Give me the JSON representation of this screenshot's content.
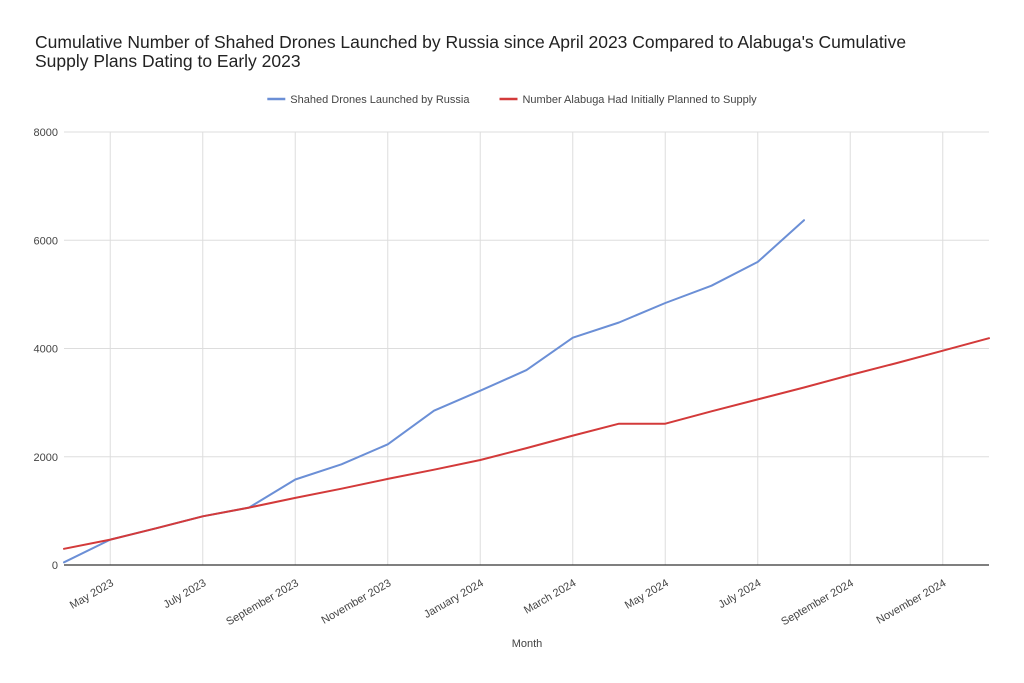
{
  "chart_data": {
    "type": "line",
    "title_lines": [
      "Cumulative Number of Shahed Drones Launched by Russia since April 2023 Compared to Alabuga's Cumulative",
      "Supply Plans Dating to Early 2023"
    ],
    "xlabel": "Month",
    "ylabel": "",
    "ylim": [
      0,
      8000
    ],
    "y_ticks": [
      0,
      2000,
      4000,
      6000,
      8000
    ],
    "x_range": [
      "2023-04",
      "2024-12"
    ],
    "x_ticks": [
      {
        "x": "2023-05",
        "label": "May 2023"
      },
      {
        "x": "2023-07",
        "label": "July 2023"
      },
      {
        "x": "2023-09",
        "label": "September 2023"
      },
      {
        "x": "2023-11",
        "label": "November 2023"
      },
      {
        "x": "2024-01",
        "label": "January 2024"
      },
      {
        "x": "2024-03",
        "label": "March 2024"
      },
      {
        "x": "2024-05",
        "label": "May 2024"
      },
      {
        "x": "2024-07",
        "label": "July 2024"
      },
      {
        "x": "2024-09",
        "label": "September 2024"
      },
      {
        "x": "2024-11",
        "label": "November 2024"
      }
    ],
    "grid": true,
    "legend_position": "top",
    "series": [
      {
        "name": "Shahed Drones Launched by Russia",
        "color": "#6b8fd6",
        "points": [
          [
            "2023-04",
            50
          ],
          [
            "2023-05",
            470
          ],
          [
            "2023-06",
            680
          ],
          [
            "2023-07",
            900
          ],
          [
            "2023-08",
            1060
          ],
          [
            "2023-09",
            1580
          ],
          [
            "2023-10",
            1860
          ],
          [
            "2023-11",
            2230
          ],
          [
            "2023-12",
            2850
          ],
          [
            "2024-01",
            3220
          ],
          [
            "2024-02",
            3600
          ],
          [
            "2024-03",
            4200
          ],
          [
            "2024-04",
            4480
          ],
          [
            "2024-05",
            4840
          ],
          [
            "2024-06",
            5160
          ],
          [
            "2024-07",
            5600
          ],
          [
            "2024-08",
            6370
          ]
        ]
      },
      {
        "name": "Number Alabuga Had Initially Planned to Supply",
        "color": "#d33a3a",
        "points": [
          [
            "2023-04",
            300
          ],
          [
            "2023-05",
            470
          ],
          [
            "2023-06",
            680
          ],
          [
            "2023-07",
            900
          ],
          [
            "2023-08",
            1060
          ],
          [
            "2023-09",
            1240
          ],
          [
            "2023-10",
            1410
          ],
          [
            "2023-11",
            1590
          ],
          [
            "2023-12",
            1760
          ],
          [
            "2024-01",
            1940
          ],
          [
            "2024-02",
            2160
          ],
          [
            "2024-03",
            2390
          ],
          [
            "2024-04",
            2610
          ],
          [
            "2024-05",
            2610
          ],
          [
            "2024-06",
            2840
          ],
          [
            "2024-07",
            3060
          ],
          [
            "2024-08",
            3280
          ],
          [
            "2024-09",
            3510
          ],
          [
            "2024-10",
            3730
          ],
          [
            "2024-11",
            3960
          ],
          [
            "2024-12",
            4190
          ]
        ]
      }
    ]
  }
}
